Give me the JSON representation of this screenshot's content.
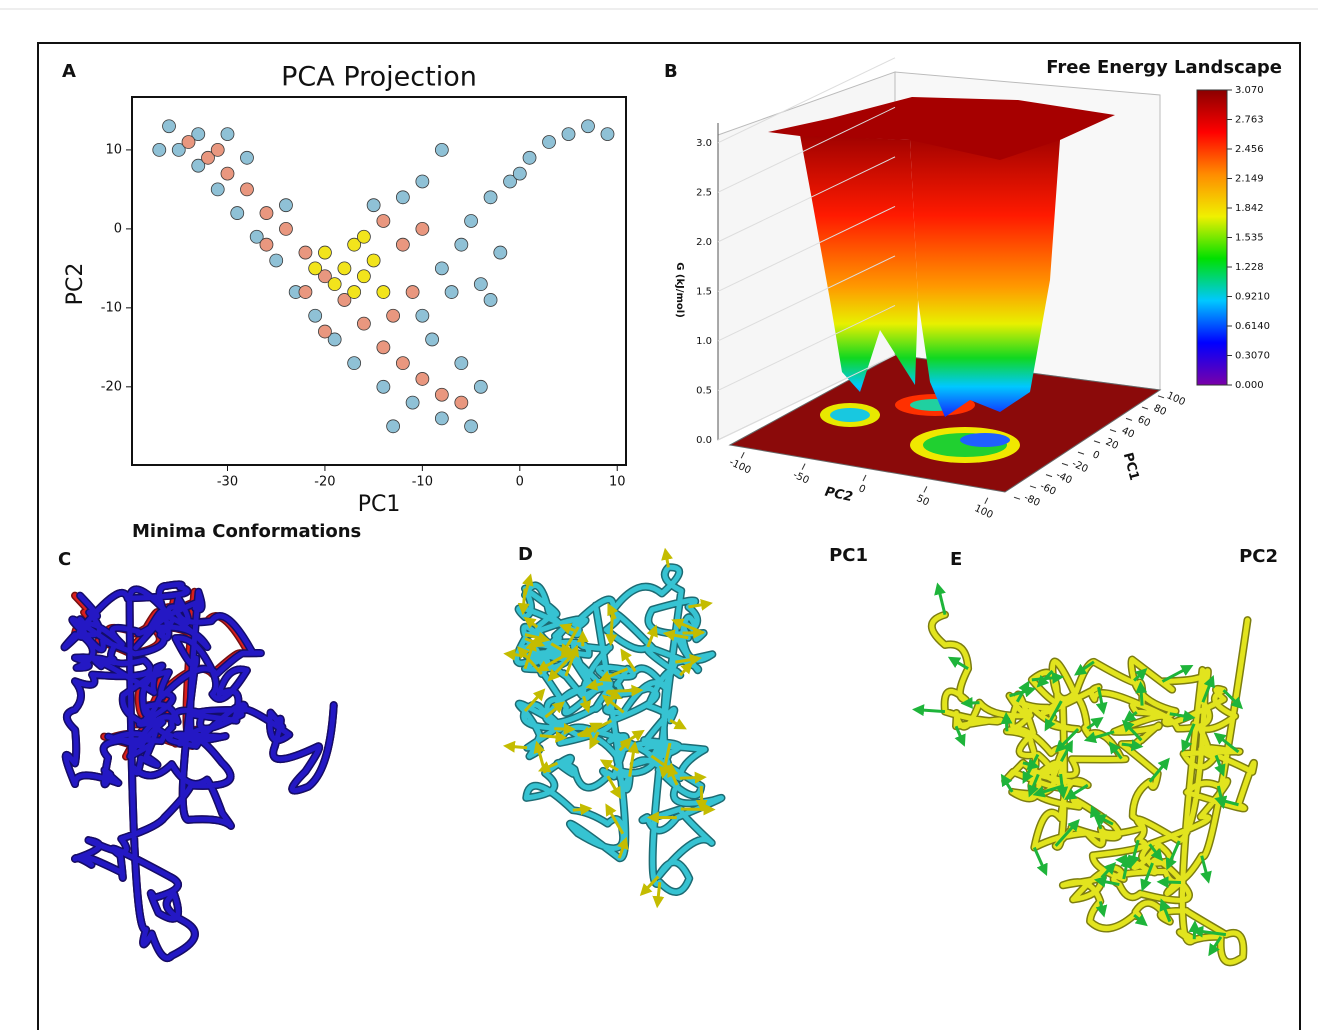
{
  "chart_data": [
    {
      "type": "scatter",
      "panel": "A",
      "title": "PCA Projection",
      "xlabel": "PC1",
      "ylabel": "PC2",
      "xlim": [
        -39.8,
        10.9
      ],
      "ylim": [
        -29.9,
        16.7
      ],
      "xticks": [
        -30,
        -20,
        -10,
        0,
        10
      ],
      "yticks": [
        -20,
        -10,
        0,
        10
      ],
      "series": [
        {
          "color": "#8fc1d6",
          "x": [
            -36,
            -35,
            -33,
            -31,
            -29,
            -27,
            -25,
            -23,
            -21,
            -19,
            -17,
            -14,
            -11,
            -8,
            -5,
            -4,
            -6,
            -9,
            -10,
            -8,
            -6,
            -5,
            -3,
            -1,
            1,
            3,
            5,
            7,
            9,
            0,
            -2,
            -4,
            -12,
            -15,
            -8,
            -10,
            -3,
            -7,
            -13,
            -30,
            -28,
            -24,
            -37,
            -33
          ],
          "values": [
            13,
            10,
            8,
            5,
            2,
            -1,
            -4,
            -8,
            -11,
            -14,
            -17,
            -20,
            -22,
            -24,
            -25,
            -20,
            -17,
            -14,
            -11,
            -5,
            -2,
            1,
            4,
            6,
            9,
            11,
            12,
            13,
            12,
            7,
            -3,
            -7,
            4,
            3,
            10,
            6,
            -9,
            -8,
            -25,
            12,
            9,
            3,
            10,
            12
          ]
        },
        {
          "color": "#e9977f",
          "x": [
            -34,
            -32,
            -30,
            -28,
            -26,
            -24,
            -22,
            -20,
            -18,
            -16,
            -14,
            -12,
            -10,
            -8,
            -6,
            -12,
            -10,
            -14,
            -11,
            -13,
            -22,
            -26,
            -31,
            -20
          ],
          "values": [
            11,
            9,
            7,
            5,
            2,
            0,
            -3,
            -6,
            -9,
            -12,
            -15,
            -17,
            -19,
            -21,
            -22,
            -2,
            0,
            1,
            -8,
            -11,
            -8,
            -2,
            10,
            -13
          ]
        },
        {
          "color": "#f2e41c",
          "x": [
            -20,
            -18,
            -17,
            -16,
            -15,
            -19,
            -14,
            -17,
            -21,
            -16
          ],
          "values": [
            -3,
            -5,
            -2,
            -6,
            -4,
            -7,
            -8,
            -8,
            -5,
            -1
          ]
        }
      ]
    },
    {
      "type": "surface3d",
      "panel": "B",
      "title": "Free Energy Landscape",
      "zlabel": "G (kJ/mol)",
      "xlabel": "PC2",
      "ylabel": "PC1",
      "zlim": [
        0,
        3.2
      ],
      "zticks": [
        {
          "value": 0,
          "label": "0.0"
        },
        0.5,
        {
          "value": 1,
          "label": "1.0"
        },
        1.5,
        {
          "value": 2,
          "label": "2.0"
        },
        2.5,
        {
          "value": 3,
          "label": "3.0"
        }
      ],
      "xlim": [
        -110,
        110
      ],
      "xticks": [
        -100,
        -50,
        0,
        50,
        100
      ],
      "ylim": [
        -85,
        105
      ],
      "yticks": [
        -80,
        -60,
        -40,
        -20,
        0,
        20,
        40,
        60,
        80,
        100
      ],
      "colorbar": {
        "lim": [
          0,
          3.07
        ],
        "colors": [
          "#7a00a8",
          "#0000ff",
          "#00c8ff",
          "#00e000",
          "#f0f000",
          "#ff8c00",
          "#ff0000",
          "#8b0000"
        ],
        "ticks": [
          {
            "value": 3.07,
            "label": "3.070"
          },
          2.763,
          2.456,
          2.149,
          1.842,
          1.535,
          1.228,
          {
            "value": 0.921,
            "label": "0.9210"
          },
          {
            "value": 0.614,
            "label": "0.6140"
          },
          {
            "value": 0.307,
            "label": "0.3070"
          },
          {
            "value": 0,
            "label": "0.000"
          }
        ]
      }
    }
  ],
  "structures": [
    {
      "panel": "C",
      "title": "Minima Conformations",
      "colors": [
        "#d81e1e",
        "#2418c4"
      ]
    },
    {
      "panel": "D",
      "title": "PC1",
      "colors": [
        "#36c3d2"
      ],
      "arrow_color": "#c4bc00"
    },
    {
      "panel": "E",
      "title": "PC2",
      "colors": [
        "#e2e41e"
      ],
      "arrow_color": "#1eb43a"
    }
  ]
}
